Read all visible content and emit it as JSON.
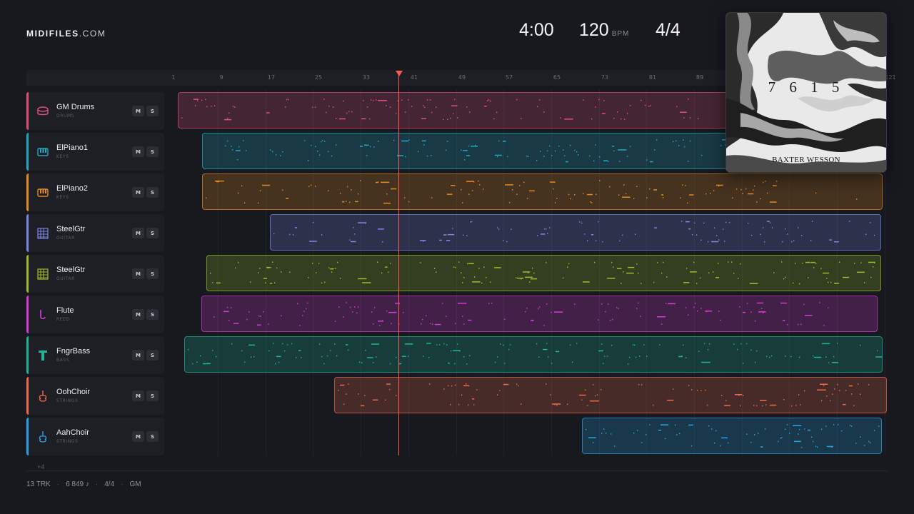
{
  "brand": {
    "name": "MIDIFILES",
    "domain": ".COM"
  },
  "transport": {
    "time": "4:00",
    "tempo": "120",
    "tempo_unit": "BPM",
    "meter": "4/4"
  },
  "ruler": {
    "bars": [
      "1",
      "9",
      "17",
      "25",
      "33",
      "41",
      "49",
      "57",
      "65",
      "73",
      "81",
      "89",
      "121"
    ]
  },
  "playhead_position_bar": 39,
  "tracks": [
    {
      "name": "GM Drums",
      "category": "DRUMS",
      "icon": "drum-icon",
      "color": "#e0507a",
      "mute": "M",
      "solo": "S"
    },
    {
      "name": "ElPiano1",
      "category": "KEYS",
      "icon": "keyboard-icon",
      "color": "#22a9c7",
      "mute": "M",
      "solo": "S"
    },
    {
      "name": "ElPiano2",
      "category": "KEYS",
      "icon": "keyboard-icon",
      "color": "#e58a22",
      "mute": "M",
      "solo": "S"
    },
    {
      "name": "SteelGtr",
      "category": "GUITAR",
      "icon": "fretboard-icon",
      "color": "#7d86e6",
      "mute": "M",
      "solo": "S"
    },
    {
      "name": "SteelGtr",
      "category": "GUITAR",
      "icon": "fretboard-icon",
      "color": "#9bbd2a",
      "mute": "M",
      "solo": "S"
    },
    {
      "name": "Flute",
      "category": "REED",
      "icon": "flute-icon",
      "color": "#d63ad6",
      "mute": "M",
      "solo": "S"
    },
    {
      "name": "FngrBass",
      "category": "BASS",
      "icon": "bass-icon",
      "color": "#1fb597",
      "mute": "M",
      "solo": "S"
    },
    {
      "name": "OohChoir",
      "category": "STRINGS",
      "icon": "violin-icon",
      "color": "#ef6a4c",
      "mute": "M",
      "solo": "S"
    },
    {
      "name": "AahChoir",
      "category": "STRINGS",
      "icon": "violin-icon",
      "color": "#27a3e8",
      "mute": "M",
      "solo": "S"
    }
  ],
  "more_tracks": "+4",
  "footer": {
    "tracks": "13 TRK",
    "notes": "6 849 ♪",
    "meter": "4/4",
    "standard": "GM"
  },
  "cover": {
    "title": "7 6 1 5",
    "artist": "BAXTER WESSON"
  }
}
